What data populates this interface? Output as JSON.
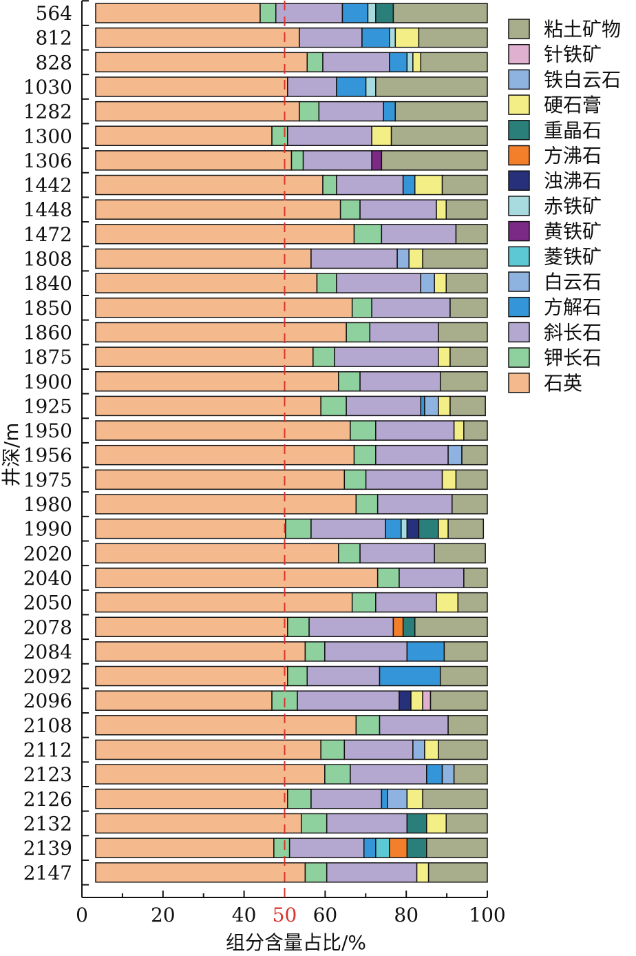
{
  "chart_data": {
    "type": "bar",
    "orientation": "horizontal",
    "stacked": true,
    "xlabel": "组分含量占比/%",
    "ylabel": "井深/m",
    "xlim": [
      0,
      100
    ],
    "xticks": [
      "0",
      "20",
      "40",
      "50",
      "60",
      "80",
      "100"
    ],
    "reference_line": {
      "value": 50,
      "color": "#d9342b",
      "style": "dashed"
    },
    "categories": [
      "564",
      "812",
      "828",
      "1030",
      "1282",
      "1300",
      "1306",
      "1442",
      "1448",
      "1472",
      "1808",
      "1840",
      "1850",
      "1860",
      "1875",
      "1900",
      "1925",
      "1950",
      "1956",
      "1975",
      "1980",
      "1990",
      "2020",
      "2040",
      "2050",
      "2078",
      "2084",
      "2092",
      "2096",
      "2108",
      "2112",
      "2123",
      "2126",
      "2132",
      "2139",
      "2147"
    ],
    "legend_position": "top-right",
    "series": [
      {
        "name": "石英",
        "color": "#f5b98e",
        "values": [
          42,
          52,
          54,
          49,
          52,
          45,
          50,
          58,
          62.5,
          66,
          55,
          56.5,
          65.5,
          64,
          55.5,
          62,
          57.5,
          65,
          66,
          63.5,
          66.5,
          48.5,
          62,
          72,
          65.5,
          49,
          53.5,
          49,
          45,
          66.5,
          57.5,
          58.5,
          49,
          52.5,
          45.5,
          53.5
        ]
      },
      {
        "name": "钾长石",
        "color": "#8fd19e",
        "values": [
          4,
          0,
          4,
          0,
          5,
          4,
          3,
          3.5,
          5,
          7,
          0,
          5,
          5,
          6,
          5.5,
          5.5,
          6.5,
          6.5,
          5.5,
          5.5,
          5.5,
          6.5,
          5.5,
          5.5,
          6,
          5.5,
          5,
          5,
          6.5,
          6,
          6,
          6.5,
          6,
          6.5,
          4,
          5.5
        ]
      },
      {
        "name": "斜长石",
        "color": "#b4a8d1",
        "values": [
          17,
          16,
          17,
          12.5,
          16.5,
          21.5,
          17.5,
          17,
          19.5,
          19,
          22,
          21.5,
          20,
          17.5,
          26.5,
          20.5,
          19,
          20,
          18.5,
          19.5,
          19,
          19,
          19,
          16.5,
          15.5,
          21.5,
          21,
          18.5,
          26,
          17.5,
          17.5,
          19.5,
          18,
          20.5,
          19,
          23
        ]
      },
      {
        "name": "方解石",
        "color": "#3496d8",
        "values": [
          6.5,
          7,
          4.5,
          7.5,
          3,
          0,
          0,
          3,
          0,
          0,
          0,
          0,
          0,
          0,
          0,
          0,
          1,
          0,
          0,
          0,
          0,
          4,
          0,
          0,
          0,
          0,
          9.5,
          15.5,
          0,
          0,
          0,
          4,
          1.5,
          0,
          3,
          0
        ]
      },
      {
        "name": "白云石",
        "color": "#8fb3e0",
        "values": [
          0,
          0,
          0,
          0,
          0,
          0,
          0,
          0,
          0,
          0,
          3,
          3.5,
          0,
          0,
          0,
          0,
          3.5,
          0,
          3.5,
          0,
          0,
          0,
          0,
          0,
          0,
          0,
          0,
          0,
          0,
          0,
          3,
          3,
          5,
          0,
          0,
          0
        ]
      },
      {
        "name": "菱铁矿",
        "color": "#5cc8d4",
        "values": [
          0,
          0,
          0,
          0,
          0,
          0,
          0,
          0,
          0,
          0,
          0,
          0,
          0,
          0,
          0,
          0,
          0,
          0,
          0,
          0,
          0,
          0,
          0,
          0,
          0,
          0,
          0,
          0,
          0,
          0,
          0,
          0,
          0,
          0,
          3.5,
          0
        ]
      },
      {
        "name": "黄铁矿",
        "color": "#7b2a86",
        "values": [
          0,
          0,
          0,
          0,
          0,
          0,
          2.5,
          0,
          0,
          0,
          0,
          0,
          0,
          0,
          0,
          0,
          0,
          0,
          0,
          0,
          0,
          0,
          0,
          0,
          0,
          0,
          0,
          0,
          0,
          0,
          0,
          0,
          0,
          0,
          0,
          0
        ]
      },
      {
        "name": "赤铁矿",
        "color": "#a7dbe0",
        "values": [
          2,
          1.5,
          1.5,
          2.5,
          0,
          0,
          0,
          0,
          0,
          0,
          0,
          0,
          0,
          0,
          0,
          0,
          0,
          0,
          0,
          0,
          0,
          1.5,
          0,
          0,
          0,
          0,
          0,
          0,
          0,
          0,
          0,
          0,
          0,
          0,
          0,
          0
        ]
      },
      {
        "name": "浊沸石",
        "color": "#27307a",
        "values": [
          0,
          0,
          0,
          0,
          0,
          0,
          0,
          0,
          0,
          0,
          0,
          0,
          0,
          0,
          0,
          0,
          0,
          0,
          0,
          0,
          0,
          3,
          0,
          0,
          0,
          0,
          0,
          0,
          3,
          0,
          0,
          0,
          0,
          0,
          0,
          0
        ]
      },
      {
        "name": "方沸石",
        "color": "#f47f2b",
        "values": [
          0,
          0,
          0,
          0,
          0,
          0,
          0,
          0,
          0,
          0,
          0,
          0,
          0,
          0,
          0,
          0,
          0,
          0,
          0,
          0,
          0,
          0,
          0,
          0,
          0,
          2.5,
          0,
          0,
          0,
          0,
          0,
          0,
          0,
          0,
          4.5,
          0
        ]
      },
      {
        "name": "重晶石",
        "color": "#2a7f7a",
        "values": [
          4.5,
          0,
          0,
          0,
          0,
          0,
          0,
          0,
          0,
          0,
          0,
          0,
          0,
          0,
          0,
          0,
          0,
          0,
          0,
          0,
          0,
          5,
          0,
          0,
          0,
          3,
          0,
          0,
          0,
          0,
          0,
          0,
          0,
          5,
          5,
          0
        ]
      },
      {
        "name": "硬石膏",
        "color": "#f3ef86",
        "values": [
          0,
          6,
          2,
          0,
          0,
          5,
          0,
          7,
          2.5,
          0,
          3.5,
          3,
          0,
          0,
          3,
          0,
          3,
          2.5,
          0,
          3.5,
          0,
          2.5,
          0,
          0,
          5.5,
          0,
          0,
          0,
          3,
          0,
          3.5,
          0,
          4,
          5,
          0,
          3
        ]
      },
      {
        "name": "铁白云石",
        "color": "#8fb3e0",
        "values": [
          0,
          0,
          0,
          0,
          0,
          0,
          0,
          0,
          0,
          0,
          0,
          0,
          0,
          0,
          0,
          0,
          0,
          0,
          0,
          0,
          0,
          0,
          0,
          0,
          0,
          0,
          0,
          0,
          0,
          0,
          0,
          0,
          0,
          0,
          0,
          0
        ]
      },
      {
        "name": "针铁矿",
        "color": "#e0b0d0",
        "values": [
          0,
          0,
          0,
          0,
          0,
          0,
          0,
          0,
          0,
          0,
          0,
          0,
          0,
          0,
          0,
          0,
          0,
          0,
          0,
          0,
          0,
          0,
          0,
          0,
          0,
          0,
          0,
          0,
          2,
          0,
          0,
          0,
          0,
          0,
          0,
          0
        ]
      },
      {
        "name": "粘土矿物",
        "color": "#a8ad8c",
        "values": [
          24,
          17.5,
          17,
          28.5,
          23.5,
          24.5,
          27,
          11.5,
          10.5,
          8,
          16.5,
          10.5,
          9.5,
          12.5,
          9.5,
          12,
          9,
          6,
          6.5,
          8,
          9,
          9,
          13,
          6,
          7.5,
          18.5,
          11,
          12,
          14.5,
          10,
          12.5,
          8.5,
          16.5,
          10.5,
          15.5,
          15
        ]
      }
    ],
    "legend_order": [
      "粘土矿物",
      "针铁矿",
      "铁白云石",
      "硬石膏",
      "重晶石",
      "方沸石",
      "浊沸石",
      "赤铁矿",
      "黄铁矿",
      "菱铁矿",
      "白云石",
      "方解石",
      "斜长石",
      "钾长石",
      "石英"
    ]
  }
}
